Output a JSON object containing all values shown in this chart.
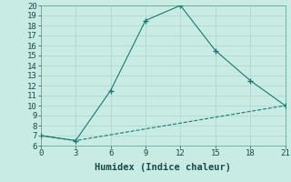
{
  "line1_x": [
    0,
    3,
    6,
    9,
    12,
    15,
    18,
    21
  ],
  "line1_y": [
    7,
    6.5,
    11.5,
    18.5,
    20,
    15.5,
    12.5,
    10
  ],
  "line2_x": [
    0,
    3,
    21
  ],
  "line2_y": [
    7,
    6.5,
    10
  ],
  "line_color": "#1a7a6e",
  "bg_color": "#c8ebe4",
  "grid_color": "#b0d8d0",
  "xlabel": "Humidex (Indice chaleur)",
  "xlim": [
    0,
    21
  ],
  "ylim": [
    6,
    20
  ],
  "xticks": [
    0,
    3,
    6,
    9,
    12,
    15,
    18,
    21
  ],
  "yticks": [
    6,
    7,
    8,
    9,
    10,
    11,
    12,
    13,
    14,
    15,
    16,
    17,
    18,
    19,
    20
  ],
  "xlabel_fontsize": 7.5,
  "tick_fontsize": 6.5
}
